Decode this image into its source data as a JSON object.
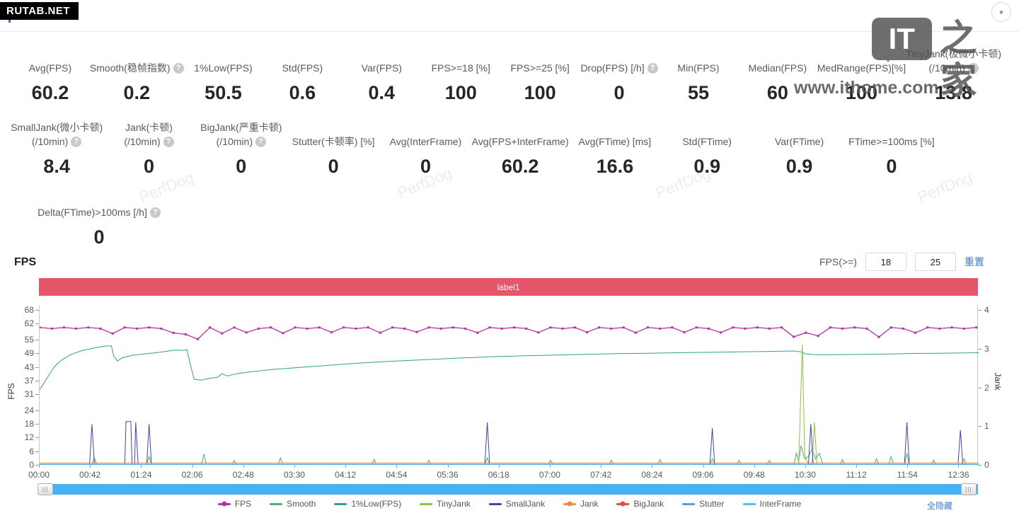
{
  "badge": "RUTAB.NET",
  "panel": {
    "title": "FPS"
  },
  "icons": {
    "collapse": "▾",
    "help": "?",
    "grip": "|||"
  },
  "watermark": {
    "perfdog": "PerfDog",
    "logo_it": "IT",
    "logo_cn": "之家",
    "url": "www.ithome.com"
  },
  "colors": {
    "accent": "#2e6be6",
    "link": "#3b7bd8",
    "label_bar": "#e55669",
    "scrollbar": "#45b2f2",
    "badge_bg": "#000000"
  },
  "metrics": {
    "row1": [
      {
        "label": "Avg(FPS)",
        "value": "60.2",
        "help": false
      },
      {
        "label": "Smooth(稳帧指数)",
        "value": "0.2",
        "help": true
      },
      {
        "label": "1%Low(FPS)",
        "value": "50.5",
        "help": false
      },
      {
        "label": "Std(FPS)",
        "value": "0.6",
        "help": false
      },
      {
        "label": "Var(FPS)",
        "value": "0.4",
        "help": false
      },
      {
        "label": "FPS>=18 [%]",
        "value": "100",
        "help": false
      },
      {
        "label": "FPS>=25 [%]",
        "value": "100",
        "help": false
      },
      {
        "label": "Drop(FPS) [/h]",
        "value": "0",
        "help": true
      },
      {
        "label": "Min(FPS)",
        "value": "55",
        "help": false
      },
      {
        "label": "Median(FPS)",
        "value": "60",
        "help": false
      },
      {
        "label": "MedRange(FPS)[%]",
        "value": "100",
        "help": false
      },
      {
        "label": "TinyJank(极微小卡顿)",
        "label2": "(/10min)",
        "value": "13.8",
        "help": true
      }
    ],
    "row2": [
      {
        "label": "SmallJank(微小卡顿)",
        "label2": "(/10min)",
        "value": "8.4",
        "help": true
      },
      {
        "label": "Jank(卡顿)",
        "label2": "(/10min)",
        "value": "0",
        "help": true
      },
      {
        "label": "BigJank(严重卡顿)",
        "label2": "(/10min)",
        "value": "0",
        "help": true
      },
      {
        "label": "Stutter(卡顿率) [%]",
        "value": "0",
        "help": false
      },
      {
        "label": "Avg(InterFrame)",
        "value": "0",
        "help": false
      },
      {
        "label": "Avg(FPS+InterFrame)",
        "value": "60.2",
        "help": false
      },
      {
        "label": "Avg(FTime) [ms]",
        "value": "16.6",
        "help": false
      },
      {
        "label": "Std(FTime)",
        "value": "0.9",
        "help": false
      },
      {
        "label": "Var(FTime)",
        "value": "0.9",
        "help": false
      },
      {
        "label": "FTime>=100ms [%]",
        "value": "0",
        "help": false
      }
    ],
    "row3": [
      {
        "label": "Delta(FTime)>100ms [/h]",
        "value": "0",
        "help": true
      }
    ]
  },
  "fps_section": {
    "title": "FPS",
    "filter_label": "FPS(>=)",
    "input1": "18",
    "input2": "25",
    "reset": "重置",
    "label_bar": "label1",
    "hide_all": "全隐藏"
  },
  "chart_data": {
    "type": "line",
    "title": "FPS",
    "x_axis": {
      "max_minutes": 772,
      "tick_minutes": [
        0,
        42,
        84,
        126,
        168,
        210,
        252,
        294,
        336,
        378,
        420,
        462,
        504,
        546,
        588,
        630,
        672,
        714,
        756
      ],
      "tick_labels": [
        "00:00",
        "00:42",
        "01:24",
        "02:06",
        "02:48",
        "03:30",
        "04:12",
        "04:54",
        "05:36",
        "06:18",
        "07:00",
        "07:42",
        "08:24",
        "09:06",
        "09:48",
        "10:30",
        "11:12",
        "11:54",
        "12:36"
      ]
    },
    "y_left": {
      "title": "FPS",
      "max": 68,
      "ticks": [
        68,
        62,
        55,
        49,
        43,
        37,
        31,
        24,
        18,
        12,
        6,
        0
      ]
    },
    "y_right": {
      "title": "Jank",
      "max": 4,
      "ticks": [
        4,
        3,
        2,
        1,
        0
      ]
    },
    "grid": false,
    "legend_position": "bottom",
    "series": [
      {
        "name": "FPS",
        "color": "#b92fa9",
        "axis": "left",
        "marker": true,
        "x0": 0,
        "dx": 10,
        "values": [
          60.3,
          59.8,
          60.3,
          59.8,
          60.3,
          59.8,
          57.6,
          60.3,
          59.8,
          60.3,
          59.8,
          57.9,
          57.3,
          55.2,
          60.3,
          57.7,
          60.3,
          58.1,
          59.8,
          60.3,
          57.8,
          60.3,
          59.8,
          60.3,
          58.2,
          60.3,
          59.8,
          60.3,
          58.0,
          60.3,
          59.8,
          58.3,
          60.3,
          59.8,
          60.3,
          59.8,
          58.0,
          60.3,
          59.8,
          60.3,
          59.8,
          58.1,
          60.3,
          59.8,
          60.3,
          58.2,
          60.3,
          59.8,
          60.3,
          58.0,
          60.3,
          59.8,
          60.3,
          58.2,
          60.3,
          59.8,
          58.1,
          60.3,
          59.8,
          60.3,
          59.8,
          60.3,
          56.2,
          58.0,
          56.6,
          60.3,
          59.8,
          60.3,
          59.8,
          56.1,
          60.3,
          59.8,
          58.0,
          60.3,
          59.8,
          60.3,
          59.8,
          60.3
        ]
      },
      {
        "name": "1%Low(FPS)",
        "color": "#2fa08f",
        "axis": "left",
        "marker": false,
        "points": [
          [
            0,
            33
          ],
          [
            6,
            38
          ],
          [
            12,
            43
          ],
          [
            18,
            46
          ],
          [
            26,
            48.5
          ],
          [
            34,
            50
          ],
          [
            42,
            51
          ],
          [
            50,
            51.8
          ],
          [
            56,
            52.2
          ],
          [
            59,
            52.2
          ],
          [
            61,
            47.6
          ],
          [
            64,
            45.6
          ],
          [
            68,
            47
          ],
          [
            76,
            48
          ],
          [
            84,
            48.6
          ],
          [
            92,
            49
          ],
          [
            100,
            49.5
          ],
          [
            106,
            50
          ],
          [
            112,
            50.4
          ],
          [
            118,
            50.2
          ],
          [
            121,
            50.6
          ],
          [
            124,
            44
          ],
          [
            127,
            37.6
          ],
          [
            132,
            37.2
          ],
          [
            140,
            38
          ],
          [
            146,
            38.4
          ],
          [
            150,
            40
          ],
          [
            154,
            39
          ],
          [
            162,
            40
          ],
          [
            170,
            40.6
          ],
          [
            180,
            41.2
          ],
          [
            190,
            41.8
          ],
          [
            205,
            42.4
          ],
          [
            220,
            43
          ],
          [
            235,
            43.6
          ],
          [
            250,
            44.2
          ],
          [
            270,
            44.9
          ],
          [
            290,
            45.5
          ],
          [
            310,
            46
          ],
          [
            330,
            46.5
          ],
          [
            350,
            47
          ],
          [
            375,
            47.5
          ],
          [
            400,
            47.9
          ],
          [
            425,
            48.2
          ],
          [
            450,
            48.5
          ],
          [
            475,
            48.8
          ],
          [
            500,
            49
          ],
          [
            525,
            49.2
          ],
          [
            550,
            49.4
          ],
          [
            575,
            49.6
          ],
          [
            600,
            49.8
          ],
          [
            620,
            50
          ],
          [
            626,
            49.6
          ],
          [
            630,
            48.7
          ],
          [
            636,
            48.4
          ],
          [
            645,
            48.3
          ],
          [
            660,
            48.4
          ],
          [
            680,
            48.5
          ],
          [
            700,
            48.7
          ],
          [
            720,
            48.9
          ],
          [
            740,
            49
          ],
          [
            772,
            49.2
          ]
        ]
      },
      {
        "name": "Smooth",
        "color": "#4caf72",
        "axis": "right",
        "marker": false,
        "points": [
          [
            0,
            0
          ],
          [
            43,
            0
          ],
          [
            45,
            0.18
          ],
          [
            47,
            0
          ],
          [
            88,
            0
          ],
          [
            90,
            0.22
          ],
          [
            92,
            0
          ],
          [
            133,
            0
          ],
          [
            135,
            0.28
          ],
          [
            137,
            0
          ],
          [
            158,
            0
          ],
          [
            160,
            0.12
          ],
          [
            162,
            0
          ],
          [
            196,
            0
          ],
          [
            198,
            0.18
          ],
          [
            200,
            0
          ],
          [
            273,
            0
          ],
          [
            275,
            0.14
          ],
          [
            277,
            0
          ],
          [
            318,
            0
          ],
          [
            320,
            0.12
          ],
          [
            322,
            0
          ],
          [
            366,
            0
          ],
          [
            368,
            0.18
          ],
          [
            370,
            0
          ],
          [
            418,
            0
          ],
          [
            420,
            0.12
          ],
          [
            422,
            0
          ],
          [
            468,
            0
          ],
          [
            470,
            0.12
          ],
          [
            472,
            0
          ],
          [
            508,
            0
          ],
          [
            510,
            0.14
          ],
          [
            512,
            0
          ],
          [
            551,
            0
          ],
          [
            553,
            0.16
          ],
          [
            555,
            0
          ],
          [
            573,
            0
          ],
          [
            575,
            0.12
          ],
          [
            577,
            0
          ],
          [
            598,
            0
          ],
          [
            600,
            0.12
          ],
          [
            602,
            0
          ],
          [
            620,
            0
          ],
          [
            622,
            0.3
          ],
          [
            624,
            0.1
          ],
          [
            626,
            0.5
          ],
          [
            629,
            0.15
          ],
          [
            632,
            0.22
          ],
          [
            635,
            0.4
          ],
          [
            638,
            0.15
          ],
          [
            641,
            0.3
          ],
          [
            644,
            0
          ],
          [
            658,
            0
          ],
          [
            660,
            0.14
          ],
          [
            662,
            0
          ],
          [
            686,
            0
          ],
          [
            688,
            0.16
          ],
          [
            690,
            0
          ],
          [
            698,
            0
          ],
          [
            700,
            0.22
          ],
          [
            702,
            0
          ],
          [
            711,
            0
          ],
          [
            713,
            0.3
          ],
          [
            715,
            0
          ],
          [
            733,
            0
          ],
          [
            735,
            0.12
          ],
          [
            737,
            0
          ],
          [
            758,
            0
          ],
          [
            760,
            0.16
          ],
          [
            762,
            0
          ],
          [
            772,
            0
          ]
        ]
      },
      {
        "name": "TinyJank",
        "color": "#8bc53f",
        "axis": "right",
        "marker": false,
        "points": [
          [
            0,
            0
          ],
          [
            624,
            0
          ],
          [
            627,
            3.1
          ],
          [
            629,
            0.25
          ],
          [
            632,
            0
          ],
          [
            635,
            0
          ],
          [
            637,
            1.1
          ],
          [
            639,
            0
          ],
          [
            772,
            0
          ]
        ]
      },
      {
        "name": "SmallJank",
        "color": "#3d44c3",
        "axis": "right",
        "marker": false,
        "points": [
          [
            0,
            0
          ],
          [
            41,
            0
          ],
          [
            43,
            1.05
          ],
          [
            45,
            0
          ],
          [
            70,
            0
          ],
          [
            71,
            1.12
          ],
          [
            75,
            1.12
          ],
          [
            76,
            0
          ],
          [
            78,
            0
          ],
          [
            79,
            1.1
          ],
          [
            81,
            0
          ],
          [
            88,
            0
          ],
          [
            90,
            1.05
          ],
          [
            92,
            0
          ],
          [
            366,
            0
          ],
          [
            368,
            1.1
          ],
          [
            370,
            0
          ],
          [
            551,
            0
          ],
          [
            553,
            0.95
          ],
          [
            555,
            0
          ],
          [
            632,
            0
          ],
          [
            634,
            1.05
          ],
          [
            636,
            0
          ],
          [
            711,
            0
          ],
          [
            713,
            1.1
          ],
          [
            715,
            0
          ],
          [
            755,
            0
          ],
          [
            757,
            0.9
          ],
          [
            759,
            0
          ],
          [
            772,
            0
          ]
        ]
      },
      {
        "name": "Jank",
        "color": "#e98d3e",
        "axis": "right",
        "marker": false,
        "points": [
          [
            0,
            0.05
          ],
          [
            772,
            0.05
          ]
        ]
      },
      {
        "name": "BigJank",
        "color": "#e14b4b",
        "axis": "right",
        "marker": false,
        "points": [
          [
            0,
            0
          ],
          [
            772,
            0
          ]
        ]
      },
      {
        "name": "Stutter",
        "color": "#4aa3e8",
        "axis": "right",
        "marker": false,
        "points": [
          [
            0,
            0
          ],
          [
            772,
            0
          ]
        ]
      },
      {
        "name": "InterFrame",
        "color": "#4fc4e9",
        "axis": "right",
        "marker": false,
        "points": [
          [
            0,
            0.02
          ],
          [
            772,
            0.02
          ]
        ]
      }
    ],
    "legend": [
      {
        "label": "FPS",
        "color": "#b92fa9",
        "dot": true
      },
      {
        "label": "Smooth",
        "color": "#4caf72",
        "dot": false
      },
      {
        "label": "1%Low(FPS)",
        "color": "#2fa08f",
        "dot": false
      },
      {
        "label": "TinyJank",
        "color": "#8bc53f",
        "dot": false
      },
      {
        "label": "SmallJank",
        "color": "#3d44c3",
        "dot": false
      },
      {
        "label": "Jank",
        "color": "#e98d3e",
        "dot": true
      },
      {
        "label": "BigJank",
        "color": "#e14b4b",
        "dot": true
      },
      {
        "label": "Stutter",
        "color": "#4aa3e8",
        "dot": false
      },
      {
        "label": "InterFrame",
        "color": "#4fc4e9",
        "dot": false
      }
    ]
  }
}
